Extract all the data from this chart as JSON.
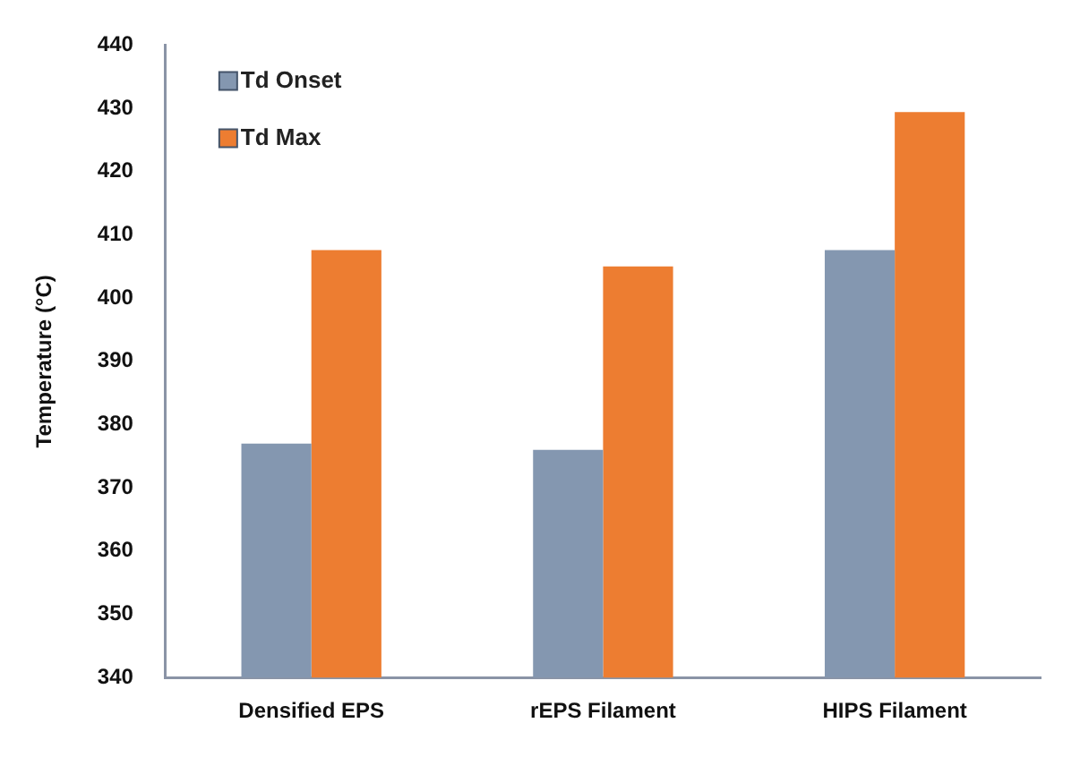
{
  "chart_data": {
    "type": "bar",
    "ylabel": "Temperature (°C)",
    "categories": [
      "Densified EPS",
      "rEPS Filament",
      "HIPS Filament"
    ],
    "series": [
      {
        "name": "Td Onset",
        "color": "#8497b0",
        "values": [
          377,
          376,
          407.6
        ]
      },
      {
        "name": "Td Max",
        "color": "#ed7d31",
        "values": [
          407.6,
          405,
          429.4
        ]
      }
    ],
    "ylim": [
      340,
      440
    ],
    "yticks": [
      340,
      350,
      360,
      370,
      380,
      390,
      400,
      410,
      420,
      430,
      440
    ],
    "grid": false,
    "legend": "top left"
  }
}
